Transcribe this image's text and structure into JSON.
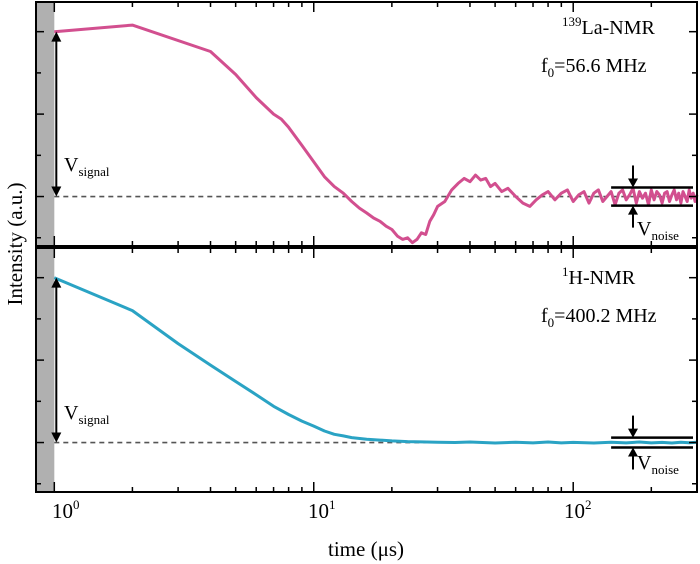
{
  "chart_data": [
    {
      "type": "line",
      "panel": "top",
      "annotation": {
        "sup": "139",
        "name": "La-NMR",
        "freq_prefix": "f",
        "freq_sub": "0",
        "freq_value": "=56.6 MHz"
      },
      "color": "#d24f8f",
      "xscale": "log",
      "xlim": [
        0.85,
        300
      ],
      "ylim": [
        -0.3,
        1.18
      ],
      "yticks_major": [
        0.0,
        0.5
      ],
      "baseline": 0.0,
      "signal_label": {
        "main": "V",
        "sub": "signal"
      },
      "noise_label": {
        "main": "V",
        "sub": "noise"
      },
      "noise_band": [
        -0.055,
        0.055
      ],
      "series": [
        {
          "x": [
            1.0,
            2.0,
            4.0,
            5.0,
            6.0,
            7.0,
            7.5,
            8.0,
            9.0,
            10.0,
            11.0,
            12.0,
            13.0,
            14.0,
            15.0,
            16.0,
            17.0,
            18.0,
            19.0,
            20.0,
            21.0,
            22.0,
            23.0,
            24.0,
            25.0,
            26.0,
            27.0,
            28.0,
            29.0,
            30.0,
            32.0,
            34.0,
            36.0,
            38.0,
            40.0,
            42.0,
            44.0,
            46.0,
            48.0,
            50.0,
            53.0,
            56.0,
            60.0,
            64.0,
            68.0,
            72.0,
            76.0,
            80.0,
            85.0,
            90.0,
            95.0,
            100.0,
            105.0,
            110.0,
            115.0,
            120.0,
            125.0,
            130.0,
            135.0,
            140.0,
            145.0,
            150.0,
            155.0,
            160.0,
            165.0,
            170.0,
            175.0,
            180.0,
            185.0,
            190.0,
            195.0,
            200.0,
            205.0,
            210.0,
            215.0,
            220.0,
            225.0,
            230.0,
            235.0,
            240.0,
            245.0,
            250.0,
            255.0,
            260.0,
            265.0,
            270.0,
            275.0,
            280.0,
            285.0,
            290.0,
            295.0,
            300.0
          ],
          "y": [
            1.0,
            1.04,
            0.88,
            0.74,
            0.6,
            0.5,
            0.47,
            0.42,
            0.31,
            0.21,
            0.12,
            0.06,
            0.02,
            -0.03,
            -0.07,
            -0.1,
            -0.13,
            -0.15,
            -0.18,
            -0.2,
            -0.24,
            -0.26,
            -0.25,
            -0.28,
            -0.26,
            -0.22,
            -0.23,
            -0.15,
            -0.11,
            -0.06,
            -0.03,
            0.04,
            0.08,
            0.11,
            0.09,
            0.13,
            0.1,
            0.11,
            0.06,
            0.08,
            0.03,
            0.05,
            0.0,
            -0.04,
            -0.06,
            -0.02,
            0.01,
            0.03,
            -0.02,
            0.02,
            0.04,
            -0.03,
            0.01,
            0.03,
            -0.04,
            0.02,
            0.04,
            -0.03,
            0.0,
            0.03,
            -0.05,
            0.02,
            0.04,
            -0.02,
            0.01,
            0.05,
            -0.04,
            0.03,
            -0.01,
            0.02,
            -0.05,
            0.04,
            -0.02,
            0.03,
            0.01,
            -0.04,
            0.02,
            0.03,
            -0.03,
            0.01,
            0.04,
            -0.02,
            0.02,
            -0.04,
            0.03,
            0.0,
            -0.03,
            0.04,
            -0.01,
            0.02,
            -0.03,
            0.01
          ]
        }
      ]
    },
    {
      "type": "line",
      "panel": "bottom",
      "annotation": {
        "sup": "1",
        "name": "H-NMR",
        "freq_prefix": "f",
        "freq_sub": "0",
        "freq_value": "=400.2 MHz"
      },
      "color": "#2aa3c4",
      "xscale": "log",
      "xlim": [
        0.85,
        300
      ],
      "ylim": [
        -0.3,
        1.18
      ],
      "yticks_major": [
        0.0,
        0.5
      ],
      "baseline": 0.0,
      "signal_label": {
        "main": "V",
        "sub": "signal"
      },
      "noise_label": {
        "main": "V",
        "sub": "noise"
      },
      "noise_band": [
        -0.03,
        0.03
      ],
      "series": [
        {
          "x": [
            1.0,
            2.0,
            3.0,
            4.0,
            5.0,
            6.0,
            7.0,
            8.0,
            9.0,
            10.0,
            11.0,
            12.0,
            13.0,
            14.0,
            16.0,
            18.0,
            20.0,
            23.0,
            26.0,
            30.0,
            35.0,
            40.0,
            50.0,
            60.0,
            70.0,
            80.0,
            90.0,
            100.0,
            120.0,
            140.0,
            160.0,
            180.0,
            200.0,
            220.0,
            240.0,
            260.0,
            280.0,
            300.0
          ],
          "y": [
            1.0,
            0.8,
            0.6,
            0.47,
            0.37,
            0.29,
            0.22,
            0.17,
            0.13,
            0.1,
            0.07,
            0.05,
            0.04,
            0.03,
            0.02,
            0.015,
            0.01,
            0.006,
            0.004,
            0.002,
            0.0,
            0.003,
            -0.003,
            0.002,
            -0.002,
            0.003,
            -0.002,
            0.001,
            -0.003,
            0.002,
            -0.002,
            0.003,
            -0.002,
            0.001,
            -0.003,
            0.002,
            -0.001,
            0.002
          ]
        }
      ]
    }
  ],
  "axes": {
    "xlabel": "time (μs)",
    "ylabel": "Intensity (a.u.)",
    "xticks": [
      {
        "value": 1,
        "base": "10",
        "exp": "0"
      },
      {
        "value": 10,
        "base": "10",
        "exp": "1"
      },
      {
        "value": 100,
        "base": "10",
        "exp": "2"
      }
    ],
    "deadtime_shading": [
      0.85,
      1.0
    ]
  },
  "colors": {
    "la": "#d24f8f",
    "h": "#2aa3c4",
    "shading": "#b0b0b0",
    "baseline": "#555555"
  }
}
